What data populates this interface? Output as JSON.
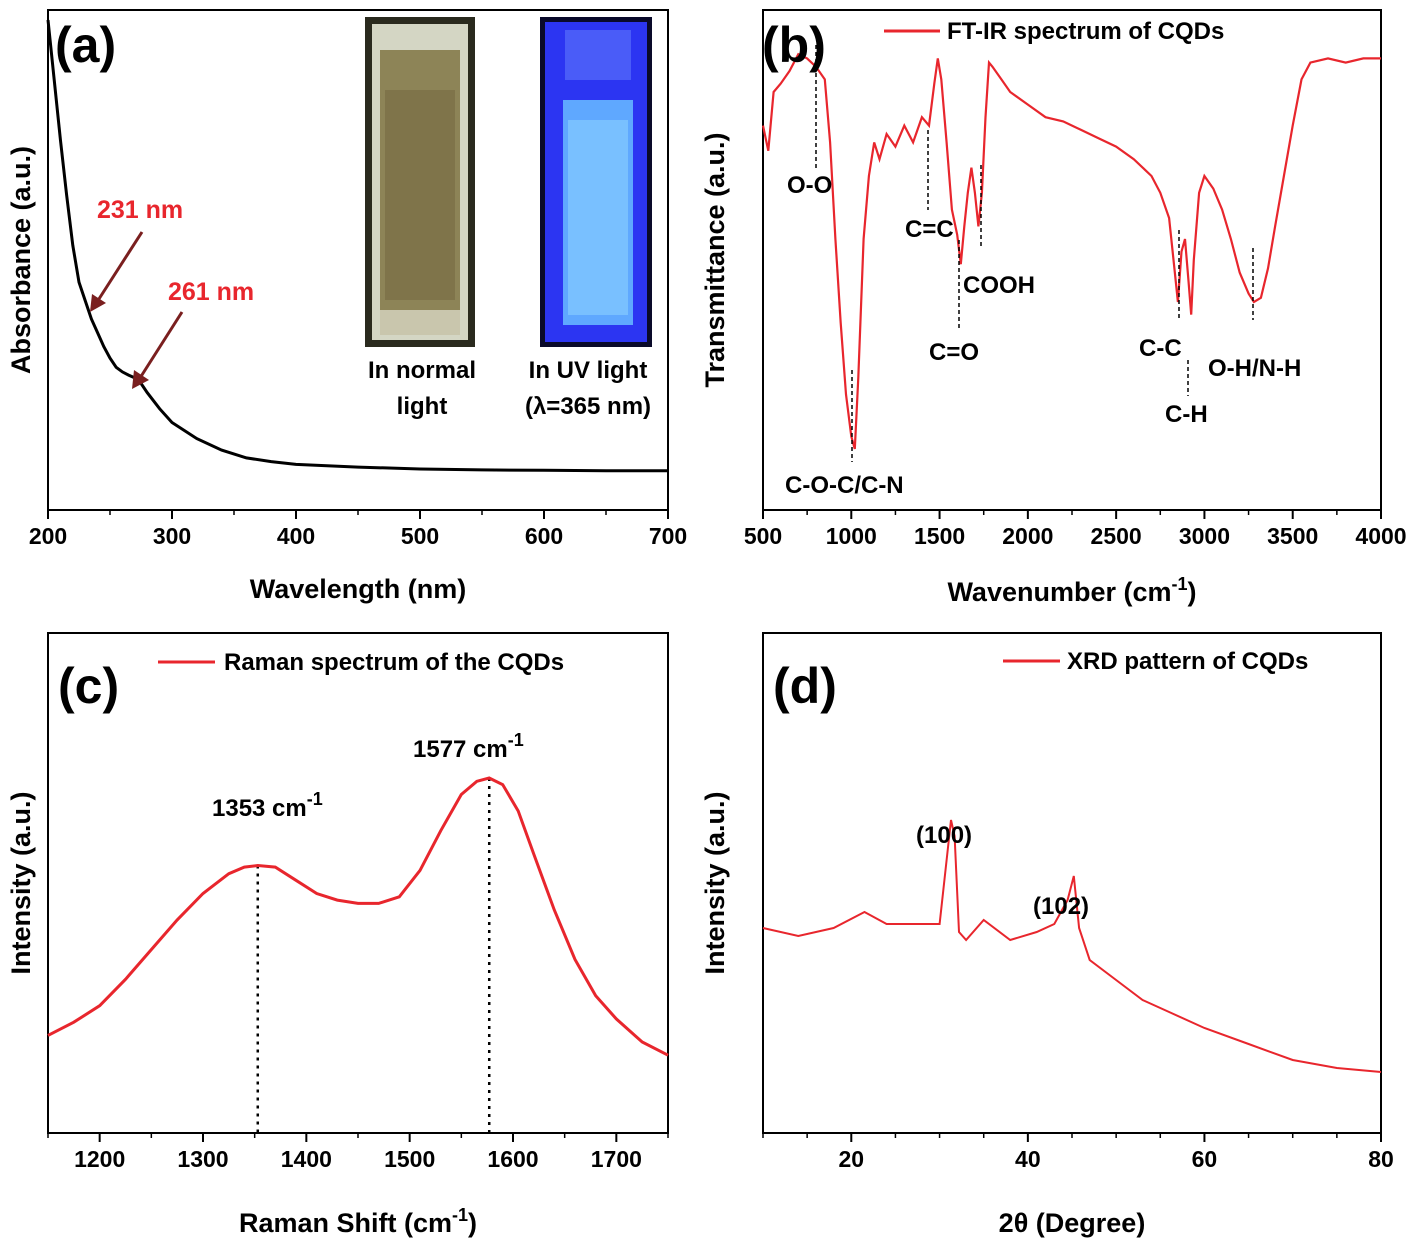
{
  "chart_data": [
    {
      "panel": "(a)",
      "type": "line",
      "xlabel": "Wavelength (nm)",
      "ylabel": "Absorbance (a.u.)",
      "xlim": [
        200,
        700
      ],
      "ylim": [
        0,
        1
      ],
      "xticks": [
        200,
        300,
        400,
        500,
        600,
        700
      ],
      "yticks_shown": false,
      "color": "#000000",
      "series": [
        {
          "x": [
            200,
            205,
            210,
            215,
            220,
            225,
            230,
            235,
            240,
            245,
            250,
            255,
            260,
            265,
            270,
            275,
            280,
            290,
            300,
            320,
            340,
            360,
            380,
            400,
            450,
            500,
            550,
            600,
            650,
            700
          ],
          "y": [
            1.0,
            0.87,
            0.74,
            0.62,
            0.51,
            0.43,
            0.39,
            0.35,
            0.32,
            0.29,
            0.265,
            0.245,
            0.235,
            0.228,
            0.222,
            0.21,
            0.19,
            0.155,
            0.125,
            0.09,
            0.065,
            0.048,
            0.04,
            0.034,
            0.028,
            0.024,
            0.022,
            0.021,
            0.02,
            0.02
          ]
        }
      ],
      "annotations": [
        "231 nm",
        "261 nm"
      ],
      "inset_captions": {
        "normal_line1": "In normal",
        "normal_line2": "light",
        "uv_line1": "In UV light",
        "uv_line2": "(λ=365 nm)"
      }
    },
    {
      "panel": "(b)",
      "type": "line",
      "xlabel": "Wavenumber (cm",
      "xlabel_sup": "-1",
      "xlabel_end": ")",
      "ylabel": "Transmittance (a.u.)",
      "xlim": [
        500,
        4000
      ],
      "ylim": [
        0,
        1
      ],
      "xticks": [
        500,
        1000,
        1500,
        2000,
        2500,
        3000,
        3500,
        4000
      ],
      "yticks_shown": false,
      "color": "#e8262d",
      "legend": "FT-IR spectrum of CQDs",
      "series": [
        {
          "name": "FT-IR spectrum of CQDs",
          "x": [
            500,
            530,
            560,
            600,
            650,
            700,
            750,
            800,
            850,
            880,
            910,
            940,
            970,
            1000,
            1020,
            1040,
            1070,
            1100,
            1130,
            1160,
            1200,
            1250,
            1300,
            1350,
            1400,
            1440,
            1470,
            1490,
            1510,
            1540,
            1570,
            1600,
            1620,
            1640,
            1660,
            1680,
            1700,
            1720,
            1740,
            1760,
            1780,
            1800,
            1850,
            1900,
            2000,
            2100,
            2200,
            2300,
            2400,
            2500,
            2600,
            2700,
            2750,
            2800,
            2830,
            2850,
            2870,
            2890,
            2910,
            2925,
            2940,
            2970,
            3000,
            3050,
            3100,
            3150,
            3200,
            3250,
            3280,
            3320,
            3360,
            3400,
            3450,
            3500,
            3550,
            3600,
            3700,
            3800,
            3900,
            4000
          ],
          "y": [
            0.82,
            0.76,
            0.9,
            0.92,
            0.95,
            0.99,
            0.98,
            0.96,
            0.93,
            0.78,
            0.55,
            0.35,
            0.18,
            0.08,
            0.05,
            0.22,
            0.55,
            0.7,
            0.78,
            0.74,
            0.8,
            0.77,
            0.82,
            0.78,
            0.84,
            0.82,
            0.92,
            0.98,
            0.93,
            0.78,
            0.62,
            0.56,
            0.49,
            0.58,
            0.66,
            0.72,
            0.66,
            0.58,
            0.66,
            0.84,
            0.97,
            0.96,
            0.93,
            0.9,
            0.87,
            0.84,
            0.83,
            0.81,
            0.79,
            0.77,
            0.74,
            0.7,
            0.66,
            0.6,
            0.48,
            0.4,
            0.52,
            0.55,
            0.45,
            0.37,
            0.5,
            0.66,
            0.7,
            0.67,
            0.62,
            0.55,
            0.47,
            0.42,
            0.4,
            0.41,
            0.48,
            0.58,
            0.7,
            0.82,
            0.93,
            0.97,
            0.98,
            0.97,
            0.98,
            0.98
          ]
        }
      ],
      "annotations": [
        "O-O",
        "C=C",
        "COOH",
        "C=O",
        "C-O-C/C-N",
        "C-C",
        "C-H",
        "O-H/N-H"
      ]
    },
    {
      "panel": "(c)",
      "type": "line",
      "xlabel": "Raman Shift (cm",
      "xlabel_sup": "-1",
      "xlabel_end": ")",
      "ylabel": "Intensity (a.u.)",
      "xlim": [
        1150,
        1750
      ],
      "ylim": [
        0,
        1
      ],
      "xticks": [
        1200,
        1300,
        1400,
        1500,
        1600,
        1700
      ],
      "yticks_shown": false,
      "color": "#e8262d",
      "legend": "Raman spectrum of the CQDs",
      "series": [
        {
          "name": "Raman spectrum of the CQDs",
          "x": [
            1150,
            1175,
            1200,
            1225,
            1250,
            1275,
            1300,
            1325,
            1340,
            1353,
            1370,
            1390,
            1410,
            1430,
            1450,
            1470,
            1490,
            1510,
            1530,
            1550,
            1565,
            1577,
            1590,
            1605,
            1620,
            1640,
            1660,
            1680,
            1700,
            1725,
            1750
          ],
          "y": [
            0.22,
            0.26,
            0.31,
            0.39,
            0.48,
            0.57,
            0.65,
            0.71,
            0.73,
            0.735,
            0.73,
            0.69,
            0.65,
            0.63,
            0.62,
            0.62,
            0.64,
            0.72,
            0.84,
            0.95,
            0.99,
            1.0,
            0.98,
            0.9,
            0.77,
            0.6,
            0.45,
            0.34,
            0.27,
            0.2,
            0.16
          ]
        }
      ],
      "annotations": [
        {
          "label": "1353 cm",
          "sup": "-1",
          "x": 1353
        },
        {
          "label": "1577 cm",
          "sup": "-1",
          "x": 1577
        }
      ]
    },
    {
      "panel": "(d)",
      "type": "line",
      "xlabel": "2θ (Degree)",
      "ylabel": "Intensity (a.u.)",
      "xlim": [
        10,
        80
      ],
      "ylim": [
        0,
        1
      ],
      "xticks": [
        20,
        40,
        60,
        80
      ],
      "yticks_shown": false,
      "color": "#e8262d",
      "legend": "XRD pattern of CQDs",
      "series": [
        {
          "name": "XRD pattern of CQDs",
          "x": [
            10,
            14,
            18,
            21.5,
            24,
            27,
            30,
            31.3,
            31.7,
            32.2,
            33,
            35,
            38,
            41,
            43,
            44.5,
            45.2,
            45.8,
            47,
            50,
            53,
            56,
            60,
            65,
            70,
            75,
            80
          ],
          "y": [
            0.45,
            0.43,
            0.45,
            0.49,
            0.46,
            0.46,
            0.46,
            0.72,
            0.68,
            0.44,
            0.42,
            0.47,
            0.42,
            0.44,
            0.46,
            0.52,
            0.58,
            0.45,
            0.37,
            0.32,
            0.27,
            0.24,
            0.2,
            0.16,
            0.12,
            0.1,
            0.09
          ]
        }
      ],
      "annotations": [
        "(100)",
        "(102)"
      ]
    }
  ]
}
